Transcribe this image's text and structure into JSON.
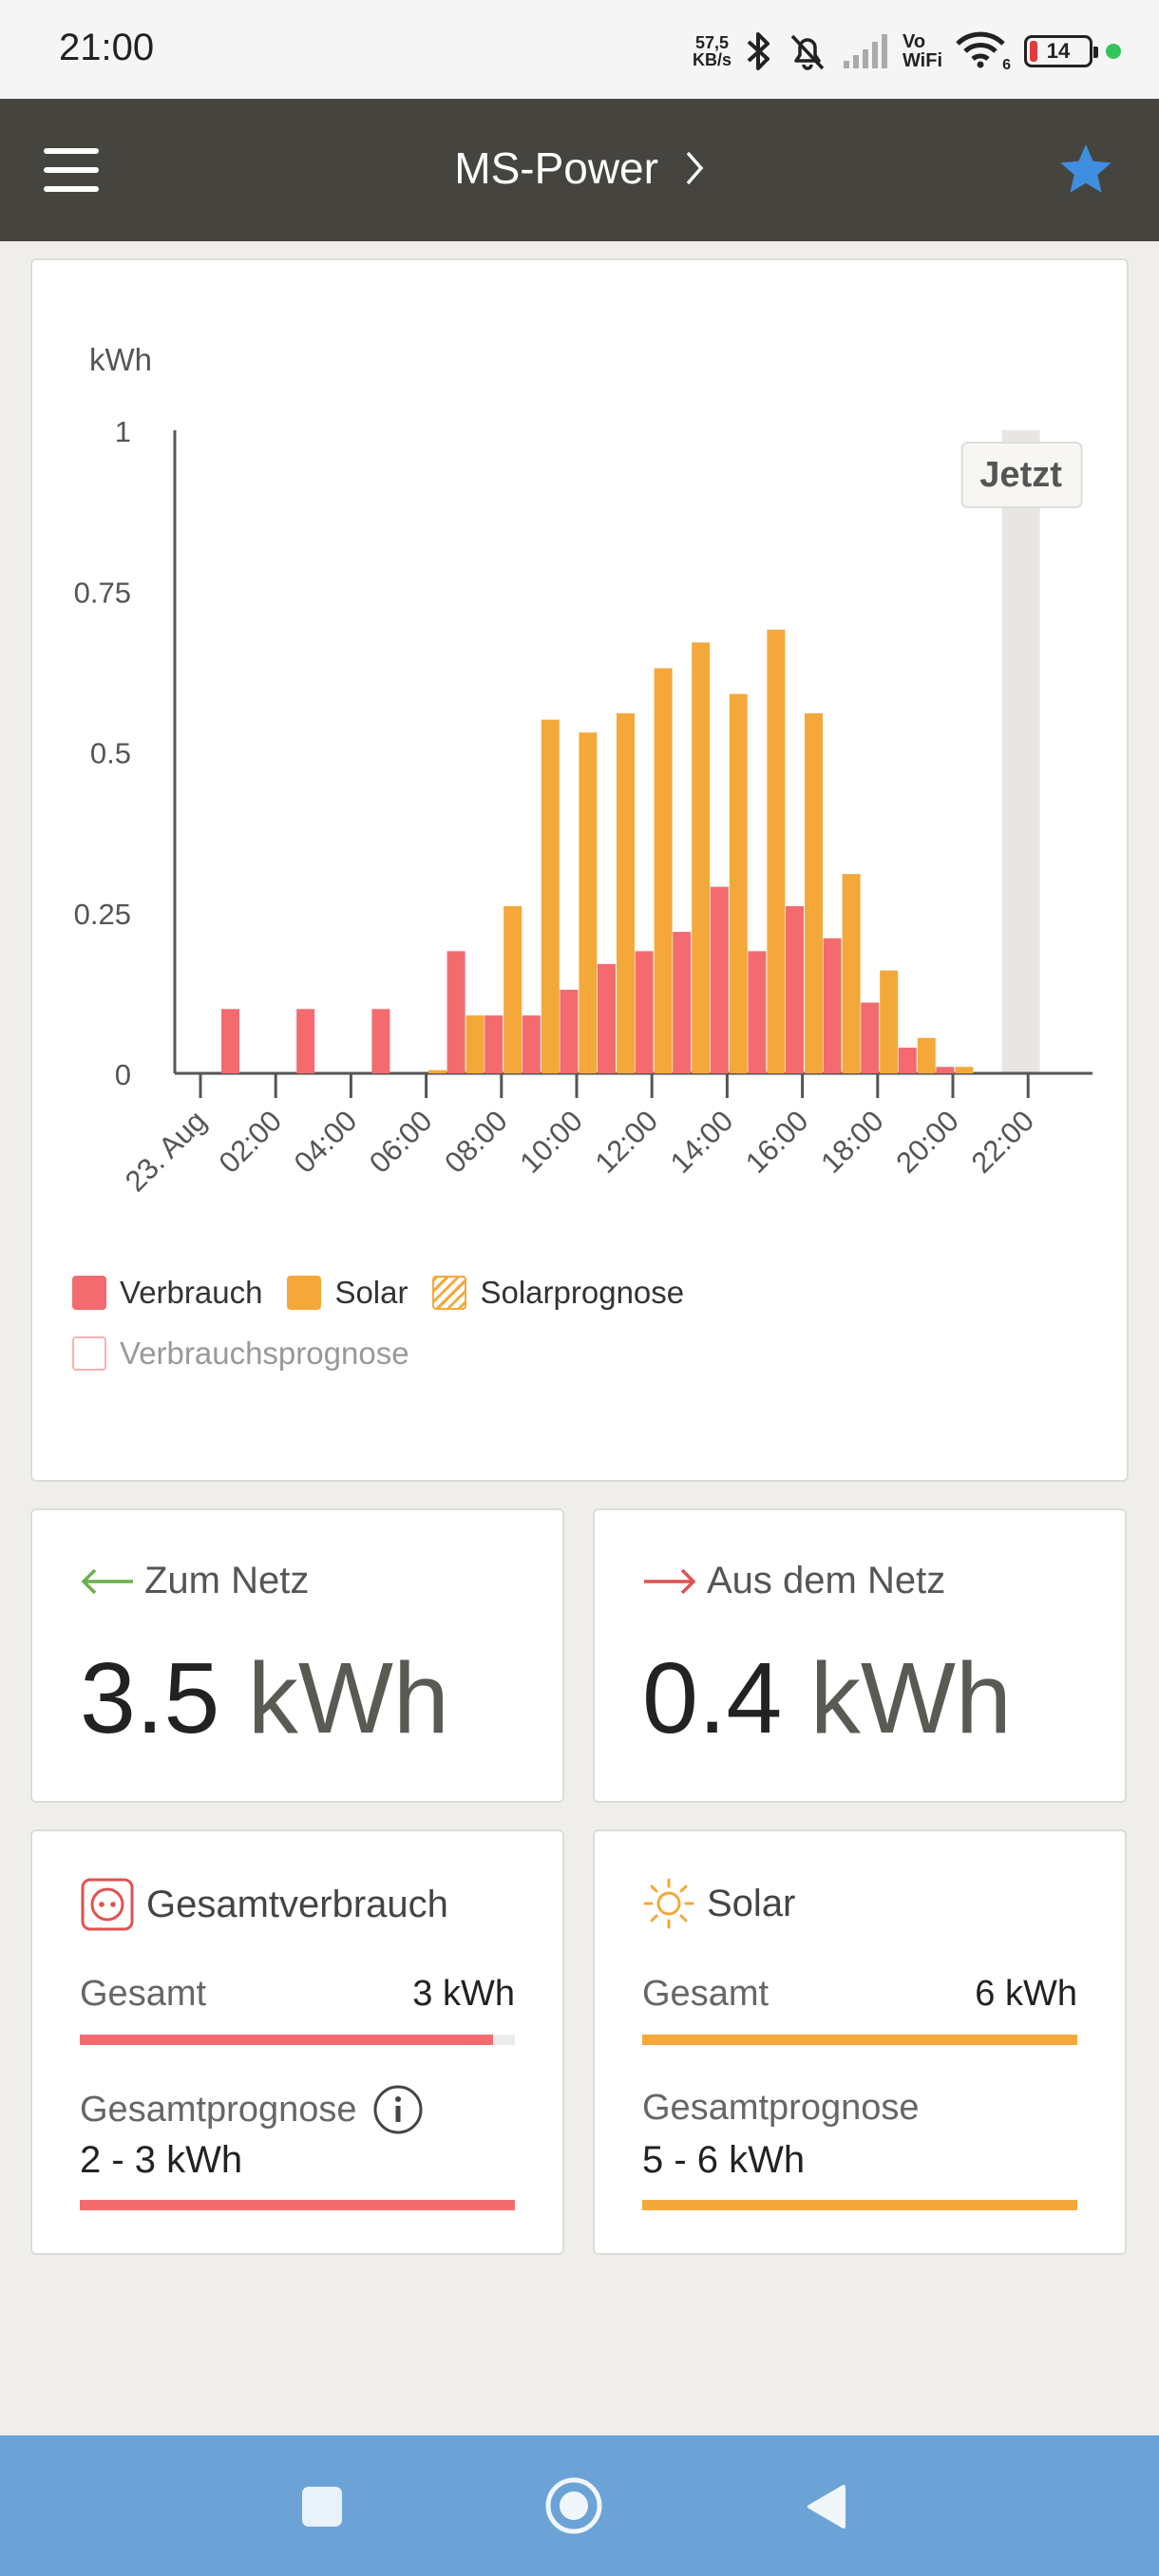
{
  "status_bar": {
    "time": "21:00",
    "speed_value": "57,5",
    "speed_unit": "KB/s",
    "vowifi_line1": "Vo",
    "vowifi_line2": "WiFi",
    "wifi_badge": "6",
    "battery": "14",
    "icons": [
      "bluetooth-icon",
      "bell-muted-icon",
      "signal-icon",
      "wifi-icon",
      "battery-icon"
    ]
  },
  "app_bar": {
    "menu_icon": "hamburger-icon",
    "title": "MS-Power",
    "title_chevron": "›",
    "favorite_icon": "star-icon",
    "colors": {
      "background": "#45443f",
      "star": "#3f8fe0"
    }
  },
  "chart_data": {
    "type": "bar",
    "ylabel": "kWh",
    "ylim": [
      0,
      1
    ],
    "yticks": [
      {
        "value": 0,
        "label": "0"
      },
      {
        "value": 0.25,
        "label": "0.25"
      },
      {
        "value": 0.5,
        "label": "0.5"
      },
      {
        "value": 0.75,
        "label": "0.75"
      },
      {
        "value": 1,
        "label": "1"
      }
    ],
    "xticks": [
      "23. Aug",
      "02:00",
      "04:00",
      "06:00",
      "08:00",
      "10:00",
      "12:00",
      "14:00",
      "16:00",
      "18:00",
      "20:00",
      "22:00"
    ],
    "hours": [
      0,
      1,
      2,
      3,
      4,
      5,
      6,
      7,
      8,
      9,
      10,
      11,
      12,
      13,
      14,
      15,
      16,
      17,
      18,
      19,
      20,
      21,
      22,
      23
    ],
    "series": [
      {
        "name": "Verbrauch",
        "color": "#f36b6f",
        "values": [
          0.1,
          0,
          0.1,
          0,
          0.1,
          0,
          0.19,
          0.09,
          0.09,
          0.13,
          0.17,
          0.19,
          0.22,
          0.29,
          0.19,
          0.26,
          0.21,
          0.11,
          0.04,
          0.01,
          0,
          0,
          0,
          0
        ]
      },
      {
        "name": "Solar",
        "color": "#f4a83a",
        "values": [
          0,
          0,
          0,
          0,
          0,
          0.005,
          0.09,
          0.26,
          0.55,
          0.53,
          0.56,
          0.63,
          0.67,
          0.59,
          0.69,
          0.56,
          0.31,
          0.16,
          0.055,
          0.01,
          0,
          0,
          0,
          0
        ]
      }
    ],
    "now_marker": {
      "hour": 21,
      "label": "Jetzt"
    },
    "legend": [
      {
        "label": "Verbrauch",
        "style": "verbrauch"
      },
      {
        "label": "Solar",
        "style": "solar"
      },
      {
        "label": "Solarprognose",
        "style": "prog"
      },
      {
        "label": "Verbrauchsprognose",
        "style": "vprog"
      }
    ]
  },
  "grid": {
    "to_grid": {
      "label": "Zum Netz",
      "value": "3.5",
      "unit": "kWh",
      "arrow_color": "#6ab04c"
    },
    "from_grid": {
      "label": "Aus dem Netz",
      "value": "0.4",
      "unit": "kWh",
      "arrow_color": "#e0524f"
    }
  },
  "consumption": {
    "title": "Gesamtverbrauch",
    "icon": "socket-icon",
    "total_label": "Gesamt",
    "total_value": "3 kWh",
    "total_fill": 0.95,
    "forecast_label": "Gesamtprognose",
    "forecast_value": "2 - 3 kWh",
    "forecast_fill": 1.0,
    "color": "#f36b6f"
  },
  "solar": {
    "title": "Solar",
    "icon": "sun-icon",
    "total_label": "Gesamt",
    "total_value": "6 kWh",
    "total_fill": 1.0,
    "forecast_label": "Gesamtprognose",
    "forecast_value": "5 - 6 kWh",
    "forecast_fill": 1.0,
    "color": "#f4a83a"
  },
  "nav_bar": {
    "buttons": [
      "recents-button",
      "home-button",
      "back-button"
    ]
  }
}
